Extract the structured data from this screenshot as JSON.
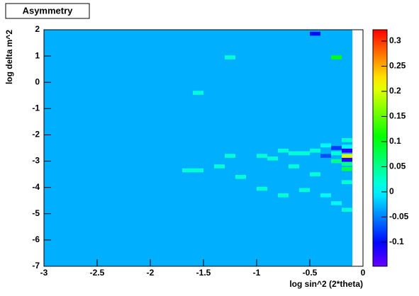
{
  "chart_data": {
    "type": "heatmap",
    "title": "Asymmetry",
    "x_label": "log sin^2 (2*theta)",
    "y_label": "log delta m^2",
    "xlim": [
      -3,
      0
    ],
    "ylim": [
      -7,
      2
    ],
    "xticks": [
      -3,
      -2.5,
      -2,
      -1.5,
      -1,
      -0.5,
      0
    ],
    "yticks": [
      2,
      1,
      0,
      -1,
      -2,
      -3,
      -4,
      -5,
      -6,
      -7
    ],
    "zlim": [
      -0.148,
      0.3225
    ],
    "zticks": [
      -0.1,
      -0.05,
      0,
      0.05,
      0.1,
      0.15,
      0.2,
      0.25,
      0.3
    ],
    "fill_region": {
      "xlim": [
        -3,
        -0.1
      ],
      "value": -0.03
    },
    "cells": {
      "x": [
        -0.45,
        -1.25,
        -0.25,
        -1.55,
        -0.15,
        -0.15,
        -0.15,
        -0.15,
        -0.15,
        -0.15,
        -0.15,
        -0.25,
        -0.25,
        -0.25,
        -0.35,
        -0.35,
        -0.45,
        -0.55,
        -0.65,
        -0.75,
        -0.85,
        -0.95,
        -1.25,
        -1.55,
        -1.65,
        -1.35,
        -1.15,
        -0.95,
        -0.75,
        -0.55,
        -0.35,
        -0.25,
        -0.15,
        -0.15,
        -0.45,
        -0.65
      ],
      "y": [
        1.85,
        0.95,
        0.95,
        -0.4,
        -2.2,
        -2.45,
        -2.6,
        -2.8,
        -2.95,
        -3.1,
        -3.3,
        -2.5,
        -2.7,
        -3.0,
        -2.4,
        -2.8,
        -2.6,
        -2.7,
        -2.7,
        -2.6,
        -2.9,
        -2.8,
        -2.8,
        -3.35,
        -3.35,
        -3.2,
        -3.6,
        -4.05,
        -4.3,
        -4.1,
        -4.3,
        -4.6,
        -4.85,
        -3.8,
        -3.5,
        -3.2
      ],
      "values": [
        -0.1,
        0.02,
        0.1,
        0.02,
        0.02,
        0.0,
        -0.12,
        0.2,
        -0.12,
        0.05,
        0.08,
        -0.08,
        0.02,
        0.05,
        0.0,
        -0.07,
        0.02,
        0.02,
        0.02,
        0.02,
        0.02,
        0.02,
        0.02,
        0.02,
        0.02,
        0.02,
        0.02,
        0.02,
        0.02,
        0.02,
        0.0,
        0.0,
        0.02,
        0.02,
        0.02,
        0.02
      ]
    }
  }
}
